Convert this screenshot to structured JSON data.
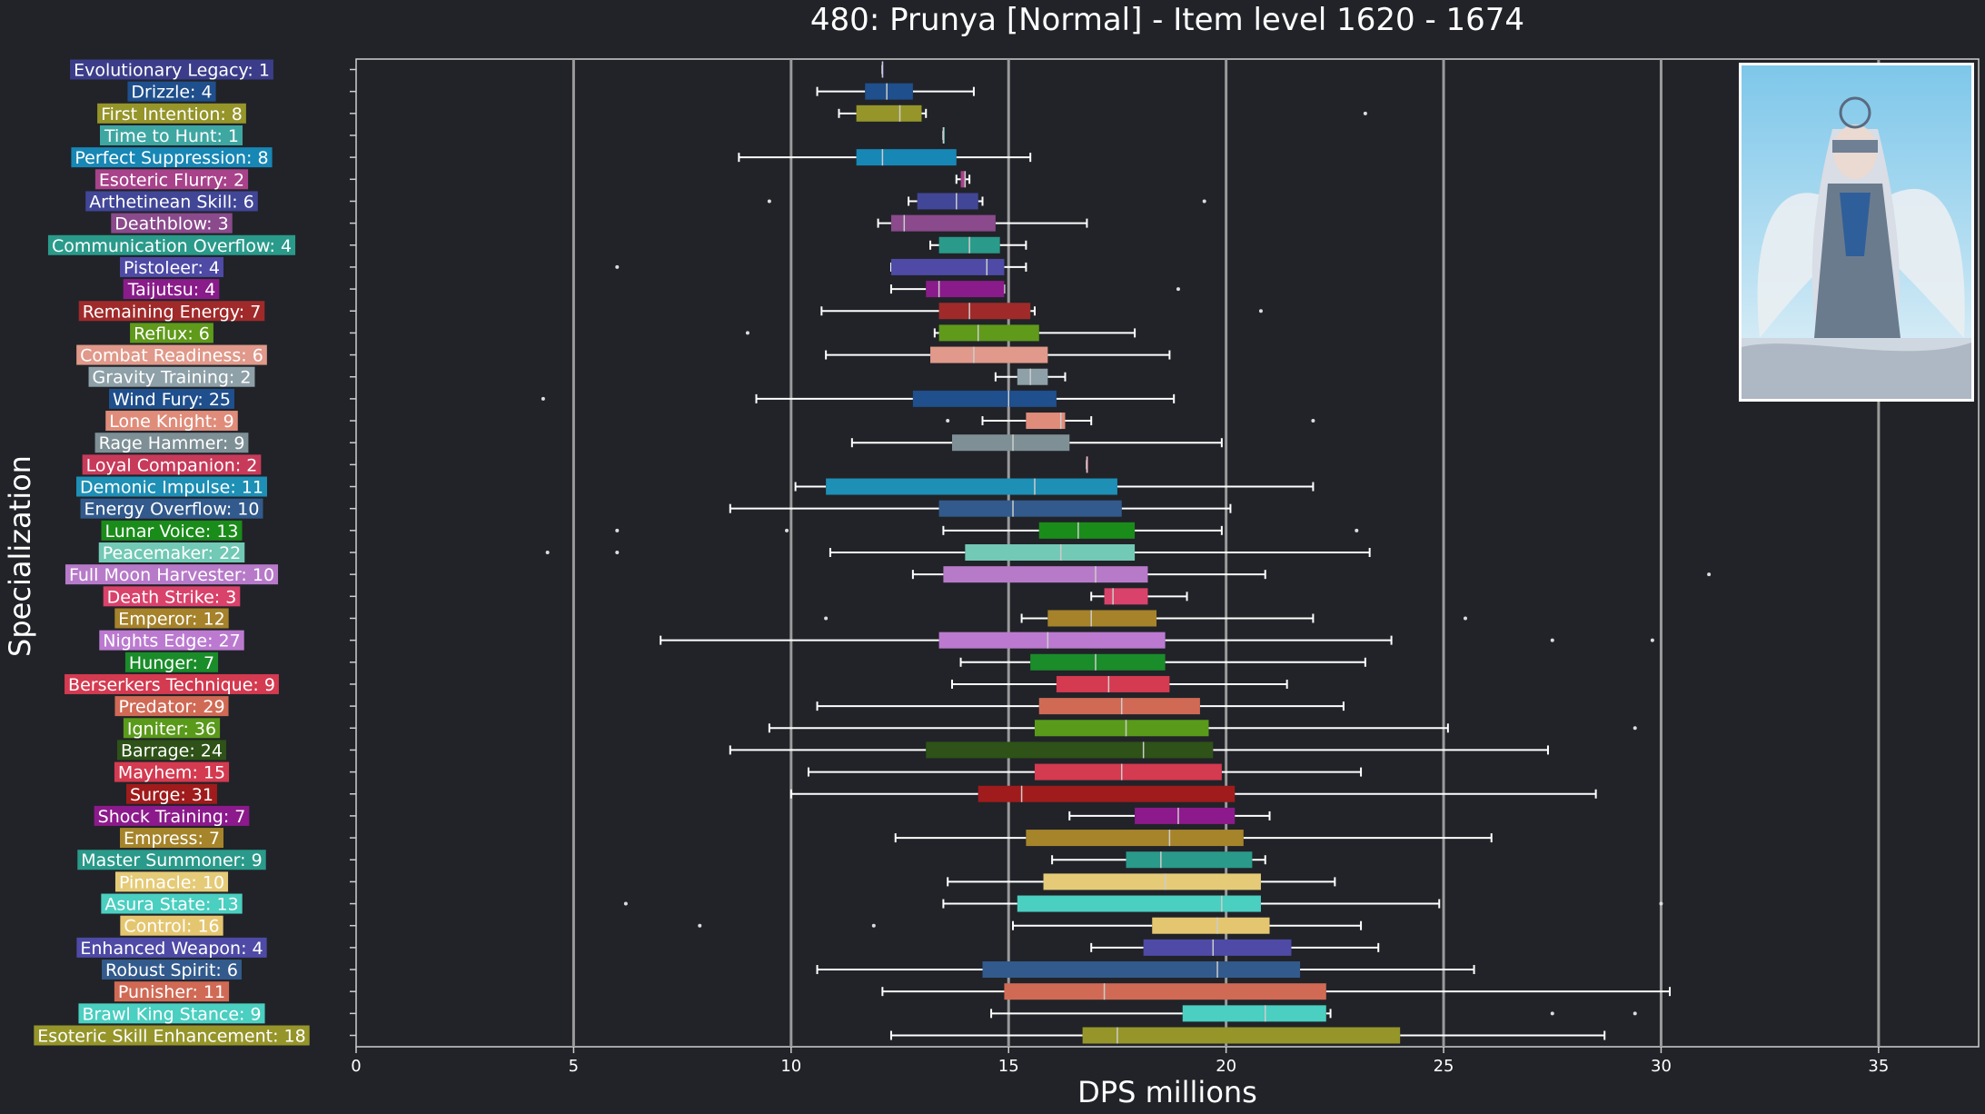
{
  "chart_data": {
    "type": "box",
    "title": "480: Prunya [Normal] - Item level 1620 - 1674",
    "xlabel": "DPS millions",
    "ylabel": "Specialization",
    "xlim": [
      0,
      37.3
    ],
    "xticks": [
      0,
      5,
      10,
      15,
      20,
      25,
      30,
      35
    ],
    "grid": true,
    "grid_color": "#9a9a9a",
    "background": "#212328",
    "image": "class-portrait",
    "series": [
      {
        "label": "Evolutionary Legacy: 1",
        "color": "#3c3d8a",
        "whisker_low": 12.1,
        "q1": 12.1,
        "median": 12.1,
        "q3": 12.1,
        "whisker_high": 12.1,
        "outliers": []
      },
      {
        "label": "Drizzle: 4",
        "color": "#1f4f8c",
        "whisker_low": 10.6,
        "q1": 11.7,
        "median": 12.2,
        "q3": 12.8,
        "whisker_high": 14.2,
        "outliers": []
      },
      {
        "label": "First Intention: 8",
        "color": "#95952a",
        "whisker_low": 11.1,
        "q1": 11.5,
        "median": 12.5,
        "q3": 13.0,
        "whisker_high": 13.1,
        "outliers": [
          23.2
        ]
      },
      {
        "label": "Time to Hunt: 1",
        "color": "#3fa7a2",
        "whisker_low": 13.5,
        "q1": 13.5,
        "median": 13.5,
        "q3": 13.5,
        "whisker_high": 13.5,
        "outliers": []
      },
      {
        "label": "Perfect Suppression: 8",
        "color": "#1787b5",
        "whisker_low": 8.8,
        "q1": 11.5,
        "median": 12.1,
        "q3": 13.8,
        "whisker_high": 15.5,
        "outliers": []
      },
      {
        "label": "Esoteric Flurry: 2",
        "color": "#a8428a",
        "whisker_low": 13.8,
        "q1": 13.9,
        "median": 14.0,
        "q3": 14.0,
        "whisker_high": 14.1,
        "outliers": []
      },
      {
        "label": "Arthetinean Skill: 6",
        "color": "#414697",
        "whisker_low": 12.7,
        "q1": 12.9,
        "median": 13.8,
        "q3": 14.3,
        "whisker_high": 14.4,
        "outliers": [
          9.5,
          19.5
        ]
      },
      {
        "label": "Deathblow: 3",
        "color": "#8a4a8c",
        "whisker_low": 12.0,
        "q1": 12.3,
        "median": 12.6,
        "q3": 14.7,
        "whisker_high": 16.8,
        "outliers": []
      },
      {
        "label": "Communication Overflow: 4",
        "color": "#2a9a8a",
        "whisker_low": 13.2,
        "q1": 13.4,
        "median": 14.1,
        "q3": 14.8,
        "whisker_high": 15.4,
        "outliers": []
      },
      {
        "label": "Pistoleer: 4",
        "color": "#4e4aa6",
        "whisker_low": 12.3,
        "q1": 12.3,
        "median": 14.5,
        "q3": 14.9,
        "whisker_high": 15.4,
        "outliers": [
          6.0
        ]
      },
      {
        "label": "Taijutsu: 4",
        "color": "#8a1b8a",
        "whisker_low": 12.3,
        "q1": 13.1,
        "median": 13.4,
        "q3": 14.9,
        "whisker_high": 14.9,
        "outliers": [
          18.9
        ]
      },
      {
        "label": "Remaining Energy: 7",
        "color": "#a02a2a",
        "whisker_low": 10.7,
        "q1": 13.4,
        "median": 14.1,
        "q3": 15.5,
        "whisker_high": 15.6,
        "outliers": [
          20.8
        ]
      },
      {
        "label": "Reflux: 6",
        "color": "#5f9a1a",
        "whisker_low": 13.3,
        "q1": 13.4,
        "median": 14.3,
        "q3": 15.7,
        "whisker_high": 17.9,
        "outliers": [
          9.0
        ]
      },
      {
        "label": "Combat Readiness: 6",
        "color": "#e0998a",
        "whisker_low": 10.8,
        "q1": 13.2,
        "median": 14.2,
        "q3": 15.9,
        "whisker_high": 18.7,
        "outliers": []
      },
      {
        "label": "Gravity Training: 2",
        "color": "#8ea0a8",
        "whisker_low": 14.7,
        "q1": 15.2,
        "median": 15.5,
        "q3": 15.9,
        "whisker_high": 16.3,
        "outliers": []
      },
      {
        "label": "Wind Fury: 25",
        "color": "#1f4f8c",
        "whisker_low": 9.2,
        "q1": 12.8,
        "median": 15.0,
        "q3": 16.1,
        "whisker_high": 18.8,
        "outliers": [
          4.3
        ]
      },
      {
        "label": "Lone Knight: 9",
        "color": "#e08c7a",
        "whisker_low": 14.4,
        "q1": 15.4,
        "median": 16.2,
        "q3": 16.3,
        "whisker_high": 16.9,
        "outliers": [
          13.6,
          22.0
        ]
      },
      {
        "label": "Rage Hammer: 9",
        "color": "#7e9096",
        "whisker_low": 11.4,
        "q1": 13.7,
        "median": 15.1,
        "q3": 16.4,
        "whisker_high": 19.9,
        "outliers": []
      },
      {
        "label": "Loyal Companion: 2",
        "color": "#c83a5a",
        "whisker_low": 16.8,
        "q1": 16.8,
        "median": 16.8,
        "q3": 16.8,
        "whisker_high": 16.8,
        "outliers": []
      },
      {
        "label": "Demonic Impulse: 11",
        "color": "#1e8fb5",
        "whisker_low": 10.1,
        "q1": 10.8,
        "median": 15.6,
        "q3": 17.5,
        "whisker_high": 22.0,
        "outliers": []
      },
      {
        "label": "Energy Overflow: 10",
        "color": "#325a8c",
        "whisker_low": 8.6,
        "q1": 13.4,
        "median": 15.1,
        "q3": 17.6,
        "whisker_high": 20.1,
        "outliers": []
      },
      {
        "label": "Lunar Voice: 13",
        "color": "#1a8c1a",
        "whisker_low": 13.5,
        "q1": 15.7,
        "median": 16.6,
        "q3": 17.9,
        "whisker_high": 19.9,
        "outliers": [
          6.0,
          9.9,
          23.0
        ]
      },
      {
        "label": "Peacemaker: 22",
        "color": "#72c9b5",
        "whisker_low": 10.9,
        "q1": 14.0,
        "median": 16.2,
        "q3": 17.9,
        "whisker_high": 23.3,
        "outliers": [
          4.4,
          6.0
        ]
      },
      {
        "label": "Full Moon Harvester: 10",
        "color": "#b77ac9",
        "whisker_low": 12.8,
        "q1": 13.5,
        "median": 17.0,
        "q3": 18.2,
        "whisker_high": 20.9,
        "outliers": [
          31.1
        ]
      },
      {
        "label": "Death Strike: 3",
        "color": "#d9426a",
        "whisker_low": 16.9,
        "q1": 17.2,
        "median": 17.4,
        "q3": 18.2,
        "whisker_high": 19.1,
        "outliers": []
      },
      {
        "label": "Emperor: 12",
        "color": "#a6822a",
        "whisker_low": 15.3,
        "q1": 15.9,
        "median": 16.9,
        "q3": 18.4,
        "whisker_high": 22.0,
        "outliers": [
          10.8,
          25.5
        ]
      },
      {
        "label": "Nights Edge: 27",
        "color": "#bb7ad0",
        "whisker_low": 7.0,
        "q1": 13.4,
        "median": 15.9,
        "q3": 18.6,
        "whisker_high": 23.8,
        "outliers": [
          27.5,
          29.8
        ]
      },
      {
        "label": "Hunger: 7",
        "color": "#1a8c2a",
        "whisker_low": 13.9,
        "q1": 15.5,
        "median": 17.0,
        "q3": 18.6,
        "whisker_high": 23.2,
        "outliers": []
      },
      {
        "label": "Berserkers Technique: 9",
        "color": "#d43a50",
        "whisker_low": 13.7,
        "q1": 16.1,
        "median": 17.3,
        "q3": 18.7,
        "whisker_high": 21.4,
        "outliers": []
      },
      {
        "label": "Predator: 29",
        "color": "#d06a55",
        "whisker_low": 10.6,
        "q1": 15.7,
        "median": 17.6,
        "q3": 19.4,
        "whisker_high": 22.7,
        "outliers": []
      },
      {
        "label": "Igniter: 36",
        "color": "#5a9a1a",
        "whisker_low": 9.5,
        "q1": 15.6,
        "median": 17.7,
        "q3": 19.6,
        "whisker_high": 25.1,
        "outliers": [
          29.4
        ]
      },
      {
        "label": "Barrage: 24",
        "color": "#2e5217",
        "whisker_low": 8.6,
        "q1": 13.1,
        "median": 18.1,
        "q3": 19.7,
        "whisker_high": 27.4,
        "outliers": []
      },
      {
        "label": "Mayhem: 15",
        "color": "#d43a50",
        "whisker_low": 10.4,
        "q1": 15.6,
        "median": 17.6,
        "q3": 19.9,
        "whisker_high": 23.1,
        "outliers": []
      },
      {
        "label": "Surge: 31",
        "color": "#a01b1b",
        "whisker_low": 10.0,
        "q1": 14.3,
        "median": 15.3,
        "q3": 20.2,
        "whisker_high": 28.5,
        "outliers": []
      },
      {
        "label": "Shock Training: 7",
        "color": "#8c1a8c",
        "whisker_low": 16.4,
        "q1": 17.9,
        "median": 18.9,
        "q3": 20.2,
        "whisker_high": 21.0,
        "outliers": []
      },
      {
        "label": "Empress: 7",
        "color": "#a6842a",
        "whisker_low": 12.4,
        "q1": 15.4,
        "median": 18.7,
        "q3": 20.4,
        "whisker_high": 26.1,
        "outliers": []
      },
      {
        "label": "Master Summoner: 9",
        "color": "#2a9a8a",
        "whisker_low": 16.0,
        "q1": 17.7,
        "median": 18.5,
        "q3": 20.6,
        "whisker_high": 20.9,
        "outliers": []
      },
      {
        "label": "Pinnacle: 10",
        "color": "#e5cb78",
        "whisker_low": 13.6,
        "q1": 15.8,
        "median": 18.6,
        "q3": 20.8,
        "whisker_high": 22.5,
        "outliers": []
      },
      {
        "label": "Asura State: 13",
        "color": "#4acfc0",
        "whisker_low": 13.5,
        "q1": 15.2,
        "median": 19.9,
        "q3": 20.8,
        "whisker_high": 24.9,
        "outliers": [
          6.2,
          30.0
        ]
      },
      {
        "label": "Control: 16",
        "color": "#e5c670",
        "whisker_low": 15.1,
        "q1": 18.3,
        "median": 19.8,
        "q3": 21.0,
        "whisker_high": 23.1,
        "outliers": [
          7.9,
          11.9
        ]
      },
      {
        "label": "Enhanced Weapon: 4",
        "color": "#4e4aa6",
        "whisker_low": 16.9,
        "q1": 18.1,
        "median": 19.7,
        "q3": 21.5,
        "whisker_high": 23.5,
        "outliers": []
      },
      {
        "label": "Robust Spirit: 6",
        "color": "#325a8c",
        "whisker_low": 10.6,
        "q1": 14.4,
        "median": 19.8,
        "q3": 21.7,
        "whisker_high": 25.7,
        "outliers": []
      },
      {
        "label": "Punisher: 11",
        "color": "#d06a55",
        "whisker_low": 12.1,
        "q1": 14.9,
        "median": 17.2,
        "q3": 22.3,
        "whisker_high": 30.2,
        "outliers": []
      },
      {
        "label": "Brawl King Stance: 9",
        "color": "#4acfc0",
        "whisker_low": 14.6,
        "q1": 19.0,
        "median": 20.9,
        "q3": 22.3,
        "whisker_high": 22.4,
        "outliers": [
          27.5,
          29.4
        ]
      },
      {
        "label": "Esoteric Skill Enhancement: 18",
        "color": "#95952a",
        "whisker_low": 12.3,
        "q1": 16.7,
        "median": 17.5,
        "q3": 24.0,
        "whisker_high": 28.7,
        "outliers": []
      }
    ]
  }
}
